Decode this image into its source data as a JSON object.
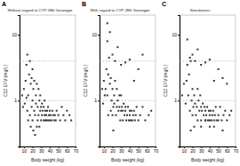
{
  "chart_data": [
    {
      "type": "scatter",
      "title": "Without regard to CYP 2B6 Genotype",
      "annotation": "A",
      "xlabel": "Body weight (kg)",
      "ylabel": "C12 EFV (mg/L)",
      "x": [
        8,
        9,
        10,
        11,
        12,
        13,
        13,
        14,
        14,
        15,
        15,
        16,
        17,
        17,
        18,
        18,
        19,
        19,
        20,
        20,
        20,
        21,
        21,
        22,
        22,
        23,
        23,
        24,
        24,
        25,
        25,
        26,
        26,
        27,
        27,
        28,
        28,
        29,
        29,
        30,
        30,
        31,
        31,
        32,
        33,
        33,
        34,
        34,
        35,
        35,
        36,
        36,
        37,
        38,
        38,
        39,
        40,
        40,
        41,
        42,
        43,
        44,
        45,
        46,
        47,
        48,
        50,
        52,
        54,
        56,
        58,
        60,
        63,
        65
      ],
      "values": [
        1.2,
        0.8,
        1.5,
        0.9,
        2.0,
        1.1,
        3.5,
        5.0,
        0.7,
        1.2,
        0.5,
        2.5,
        4.0,
        0.6,
        1.8,
        0.4,
        2.2,
        0.8,
        0.5,
        1.0,
        3.0,
        1.5,
        0.35,
        0.7,
        2.0,
        0.6,
        0.3,
        1.2,
        0.9,
        1.8,
        0.4,
        0.5,
        0.8,
        1.5,
        0.6,
        1.0,
        0.4,
        0.7,
        1.2,
        0.8,
        0.5,
        0.6,
        0.9,
        0.7,
        0.5,
        0.8,
        1.0,
        0.6,
        0.7,
        0.5,
        0.6,
        0.5,
        0.7,
        0.8,
        0.5,
        0.6,
        0.7,
        0.5,
        0.6,
        0.5,
        0.7,
        0.6,
        0.5,
        0.6,
        0.5,
        0.7,
        0.6,
        0.5,
        0.8,
        0.6,
        0.5,
        0.7,
        0.6,
        0.5
      ],
      "color": "#333333",
      "marker": "square",
      "log": "y",
      "xlim": [
        5,
        70
      ],
      "ylim": [
        0.2,
        20
      ],
      "xticks": [
        10,
        20,
        30,
        40,
        50,
        60,
        70
      ],
      "yticks": [
        1,
        10
      ],
      "hlines": [
        1.0,
        4.0
      ]
    },
    {
      "type": "scatter",
      "title": "With regard to CYP 2B6 Genotype",
      "annotation": "B",
      "xlabel": "Body weight (kg)",
      "ylabel": "C12 EFV (mg/L)",
      "x": [
        8,
        9,
        10,
        11,
        12,
        13,
        14,
        14,
        15,
        15,
        16,
        17,
        18,
        18,
        19,
        20,
        20,
        21,
        21,
        22,
        22,
        23,
        24,
        25,
        25,
        26,
        27,
        28,
        28,
        29,
        30,
        30,
        31,
        32,
        32,
        33,
        34,
        35,
        35,
        36,
        37,
        38,
        39,
        40,
        40,
        41,
        42,
        43,
        44,
        45,
        46,
        47,
        48,
        50,
        52,
        55,
        58,
        62,
        65,
        14,
        17,
        20,
        23,
        26,
        30,
        35,
        40,
        45,
        50,
        55
      ],
      "values": [
        1.5,
        0.9,
        2.0,
        1.2,
        1.5,
        3.0,
        8.0,
        1.2,
        2.5,
        0.6,
        4.5,
        1.8,
        2.2,
        0.7,
        1.0,
        0.6,
        1.5,
        0.8,
        0.35,
        1.2,
        0.9,
        2.0,
        0.6,
        0.8,
        1.5,
        1.0,
        0.7,
        1.2,
        0.8,
        0.5,
        0.7,
        1.2,
        0.8,
        0.5,
        0.7,
        0.9,
        0.6,
        0.8,
        0.7,
        0.5,
        0.6,
        0.8,
        0.5,
        0.7,
        0.6,
        0.5,
        0.7,
        0.5,
        0.6,
        0.7,
        0.5,
        0.6,
        0.8,
        0.5,
        0.6,
        0.8,
        0.5,
        0.6,
        0.7,
        15.0,
        11.0,
        5.0,
        4.0,
        6.5,
        3.5,
        3.8,
        4.2,
        2.0,
        3.0,
        5.0
      ],
      "color": "#333333",
      "marker": "square",
      "log": "y",
      "xlim": [
        5,
        70
      ],
      "ylim": [
        0.2,
        20
      ],
      "xticks": [
        10,
        20,
        30,
        40,
        50,
        60,
        70
      ],
      "yticks": [
        1,
        10
      ],
      "hlines": [
        1.0,
        4.0
      ]
    },
    {
      "type": "scatter",
      "title": "Simulations",
      "annotation": "C",
      "xlabel": "Body weight (kg)",
      "ylabel": "C12 EFV (mg/L)",
      "x": [
        8,
        10,
        12,
        13,
        14,
        15,
        16,
        17,
        18,
        19,
        20,
        20,
        21,
        22,
        23,
        24,
        25,
        26,
        27,
        28,
        29,
        30,
        30,
        31,
        32,
        33,
        34,
        35,
        35,
        36,
        37,
        38,
        39,
        40,
        40,
        41,
        42,
        43,
        44,
        45,
        46,
        47,
        48,
        50,
        52,
        54,
        56,
        58,
        60,
        63,
        65,
        14,
        17,
        20,
        23,
        26,
        30,
        35,
        40,
        45,
        50,
        55,
        60,
        18,
        22,
        26,
        30,
        35,
        40,
        45,
        50,
        55
      ],
      "values": [
        1.2,
        1.8,
        0.9,
        2.0,
        3.5,
        1.2,
        2.5,
        0.7,
        4.0,
        1.0,
        0.6,
        1.5,
        0.8,
        1.2,
        0.9,
        0.6,
        0.8,
        1.5,
        1.0,
        0.7,
        1.2,
        0.8,
        0.5,
        0.7,
        0.9,
        0.6,
        0.8,
        0.7,
        0.5,
        0.6,
        0.8,
        0.5,
        0.7,
        0.6,
        0.5,
        0.7,
        0.5,
        0.6,
        0.7,
        0.5,
        0.6,
        0.8,
        0.5,
        0.6,
        0.8,
        0.5,
        0.6,
        0.7,
        0.5,
        0.6,
        0.7,
        8.5,
        4.5,
        5.0,
        4.0,
        6.0,
        3.5,
        3.8,
        4.2,
        2.0,
        3.0,
        2.2,
        1.8,
        0.35,
        0.4,
        0.5,
        0.4,
        0.5,
        0.4,
        0.4,
        0.5,
        0.35
      ],
      "color": "#333333",
      "marker": "square",
      "log": "y",
      "xlim": [
        5,
        70
      ],
      "ylim": [
        0.2,
        20
      ],
      "xticks": [
        10,
        20,
        30,
        40,
        50,
        60,
        70
      ],
      "yticks": [
        1,
        10
      ],
      "hlines": [
        1.0,
        4.0
      ]
    }
  ]
}
